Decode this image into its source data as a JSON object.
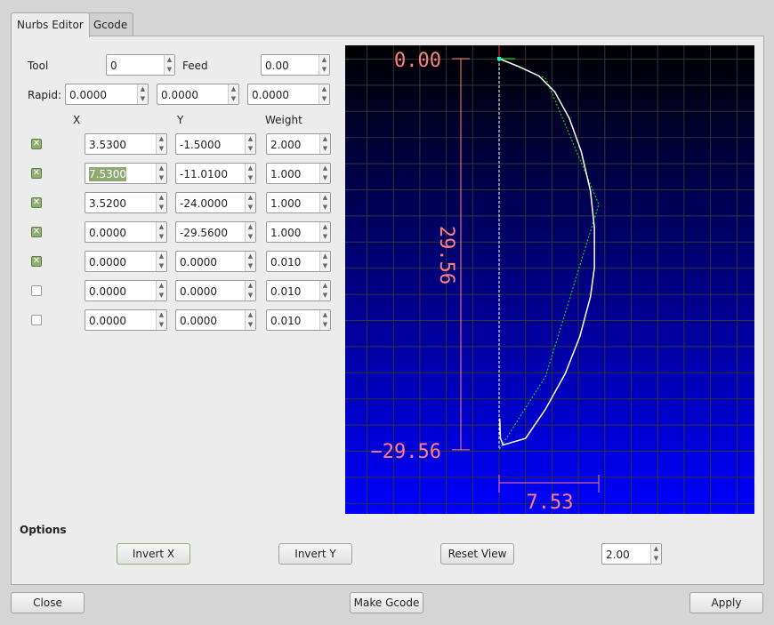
{
  "tabs": [
    {
      "label": "Nurbs Editor",
      "active": true
    },
    {
      "label": "Gcode",
      "active": false
    }
  ],
  "tool": {
    "label": "Tool",
    "value": "0"
  },
  "feed": {
    "label": "Feed",
    "value": "0.00"
  },
  "rapid": {
    "label": "Rapid:",
    "values": [
      "0.0000",
      "0.0000",
      "0.0000"
    ]
  },
  "headers": {
    "x": "X",
    "y": "Y",
    "weight": "Weight"
  },
  "points": [
    {
      "enabled": true,
      "x": "3.5300",
      "y": "-1.5000",
      "w": "2.000"
    },
    {
      "enabled": true,
      "x": "7.5300",
      "y": "-11.0100",
      "w": "1.000"
    },
    {
      "enabled": true,
      "x": "3.5200",
      "y": "-24.0000",
      "w": "1.000"
    },
    {
      "enabled": true,
      "x": "0.0000",
      "y": "-29.5600",
      "w": "1.000"
    },
    {
      "enabled": true,
      "x": "0.0000",
      "y": "0.0000",
      "w": "0.010"
    },
    {
      "enabled": false,
      "x": "0.0000",
      "y": "0.0000",
      "w": "0.010"
    },
    {
      "enabled": false,
      "x": "0.0000",
      "y": "0.0000",
      "w": "0.010"
    }
  ],
  "preview": {
    "top_label": "0.00",
    "bottom_label": "−29.56",
    "height_label": "29.56",
    "width_label": "7.53",
    "label_color": "#ff8080",
    "curve_color": "#ffffff",
    "polygon_color": "#00ff00"
  },
  "options": {
    "title": "Options",
    "invert_x": "Invert X",
    "invert_y": "Invert Y",
    "reset_view": "Reset View",
    "zoom_value": "2.00"
  },
  "footer": {
    "close": "Close",
    "make_gcode": "Make Gcode",
    "apply": "Apply"
  }
}
